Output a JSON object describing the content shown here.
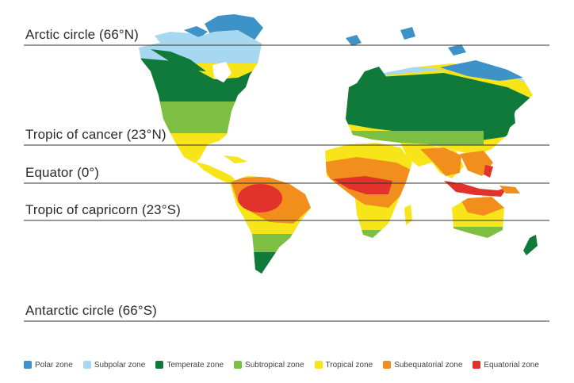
{
  "lines": [
    {
      "label": "Arctic circle (66°N)"
    },
    {
      "label": "Tropic of cancer (23°N)"
    },
    {
      "label": "Equator (0°)"
    },
    {
      "label": "Tropic of capricorn (23°S)"
    },
    {
      "label": "Antarctic circle (66°S)"
    }
  ],
  "legend": [
    {
      "label": "Polar zone",
      "color": "#3d92c8"
    },
    {
      "label": "Subpolar zone",
      "color": "#a6d8f2"
    },
    {
      "label": "Temperate zone",
      "color": "#0f7a3a"
    },
    {
      "label": "Subtropical zone",
      "color": "#7cbf42"
    },
    {
      "label": "Tropical zone",
      "color": "#f7e51a"
    },
    {
      "label": "Subequatorial zone",
      "color": "#f28e1c"
    },
    {
      "label": "Equatorial zone",
      "color": "#e2322c"
    }
  ]
}
